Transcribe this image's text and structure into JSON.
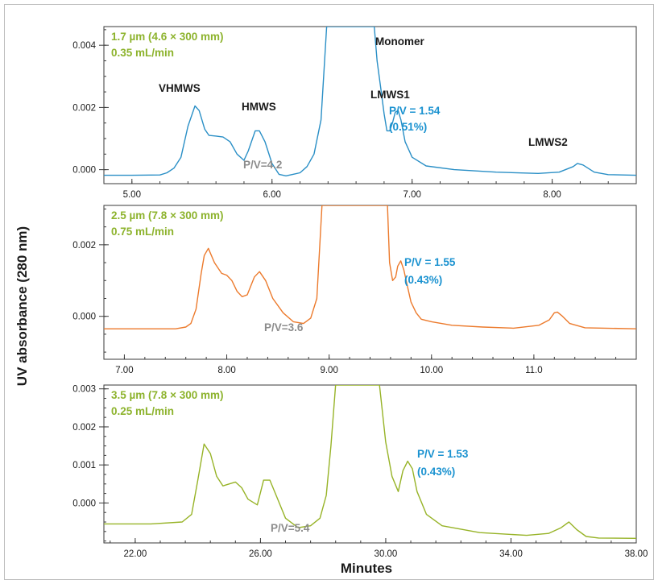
{
  "colors": {
    "panel1": "#2a8fc6",
    "panel2": "#ec7a2c",
    "panel3": "#97b327",
    "condition": "#8db32d",
    "pv_blue": "#1a92d0",
    "pv_gray": "#8c8c8c",
    "annotation": "#1a1a1a"
  },
  "axes": {
    "ylabel": "UV absorbance (280 nm)",
    "xlabel": "Minutes"
  },
  "chart_data": [
    {
      "type": "line",
      "condition": [
        "1.7 µm (4.6 × 300 mm)",
        "0.35 mL/min"
      ],
      "xlim": [
        4.8,
        8.6
      ],
      "ylim": [
        -0.00045,
        0.0046
      ],
      "x_ticks": [
        "5.00",
        "6.00",
        "7.00",
        "8.00"
      ],
      "x_tick_values": [
        5.0,
        6.0,
        7.0,
        8.0
      ],
      "y_ticks": [
        "0.000",
        "0.002",
        "0.004"
      ],
      "y_tick_values": [
        0.0,
        0.002,
        0.004
      ],
      "annotations": {
        "peaks": [
          "VHMWS",
          "HMWS",
          "Monomer",
          "LMWS1",
          "LMWS2"
        ],
        "pv_gray": "P/V=4.2",
        "pv_blue": [
          "P/V = 1.54",
          "(0.51%)"
        ]
      },
      "series": [
        {
          "x": [
            4.8,
            5.0,
            5.2,
            5.25,
            5.3,
            5.35,
            5.4,
            5.45,
            5.48,
            5.52,
            5.55,
            5.6,
            5.65,
            5.7,
            5.75,
            5.8,
            5.83,
            5.88,
            5.91,
            5.95,
            6.0,
            6.05,
            6.1,
            6.15,
            6.2,
            6.25,
            6.3,
            6.35,
            6.39,
            6.73,
            6.75,
            6.78,
            6.8,
            6.82,
            6.84,
            6.86,
            6.88,
            6.9,
            6.92,
            6.95,
            7.0,
            7.1,
            7.3,
            7.6,
            7.9,
            8.05,
            8.15,
            8.18,
            8.22,
            8.3,
            8.4,
            8.6
          ],
          "y": [
            -0.00018,
            -0.00018,
            -0.00017,
            -0.0001,
            5e-05,
            0.0004,
            0.0014,
            0.00205,
            0.0019,
            0.0013,
            0.0011,
            0.00108,
            0.00105,
            0.0009,
            0.0005,
            0.0003,
            0.0006,
            0.00125,
            0.00125,
            0.0009,
            0.0002,
            -0.00015,
            -0.0002,
            -0.00015,
            -0.0001,
            0.0001,
            0.0005,
            0.0016,
            0.0046,
            0.0046,
            0.0035,
            0.0025,
            0.0018,
            0.00125,
            0.00125,
            0.0015,
            0.00185,
            0.0019,
            0.0016,
            0.0009,
            0.0004,
            0.00012,
            0.0,
            -8e-05,
            -0.00012,
            -8e-05,
            0.0001,
            0.0002,
            0.00015,
            -8e-05,
            -0.00016,
            -0.00018
          ]
        }
      ]
    },
    {
      "type": "line",
      "condition": [
        "2.5 µm (7.8 × 300 mm)",
        "0.75 mL/min"
      ],
      "xlim": [
        6.8,
        12.0
      ],
      "ylim": [
        -0.0012,
        0.0031
      ],
      "x_ticks": [
        "7.00",
        "8.00",
        "9.00",
        "10.00",
        "11.0"
      ],
      "x_tick_values": [
        7.0,
        8.0,
        9.0,
        10.0,
        11.0
      ],
      "y_ticks": [
        "0.000",
        "0.002"
      ],
      "y_tick_values": [
        0.0,
        0.002
      ],
      "annotations": {
        "pv_gray": "P/V=3.6",
        "pv_blue": [
          "P/V = 1.55",
          "(0.43%)"
        ]
      },
      "series": [
        {
          "x": [
            6.8,
            7.5,
            7.6,
            7.65,
            7.7,
            7.75,
            7.78,
            7.82,
            7.88,
            7.95,
            8.0,
            8.05,
            8.1,
            8.15,
            8.2,
            8.27,
            8.32,
            8.38,
            8.45,
            8.55,
            8.65,
            8.75,
            8.82,
            8.88,
            8.93,
            9.57,
            9.59,
            9.62,
            9.65,
            9.67,
            9.7,
            9.73,
            9.76,
            9.8,
            9.85,
            9.9,
            10.0,
            10.2,
            10.5,
            10.8,
            11.05,
            11.15,
            11.2,
            11.23,
            11.28,
            11.35,
            11.5,
            12.0
          ],
          "y": [
            -0.00035,
            -0.00035,
            -0.0003,
            -0.0002,
            0.0002,
            0.0012,
            0.0017,
            0.0019,
            0.0015,
            0.0012,
            0.00115,
            0.001,
            0.0007,
            0.00055,
            0.0006,
            0.0011,
            0.00125,
            0.001,
            0.0005,
            0.0001,
            -0.00015,
            -0.0002,
            -5e-05,
            0.0005,
            0.0031,
            0.0031,
            0.0015,
            0.001,
            0.0011,
            0.0014,
            0.00155,
            0.0013,
            0.0009,
            0.0004,
            0.0001,
            -8e-05,
            -0.00015,
            -0.00025,
            -0.0003,
            -0.00033,
            -0.00025,
            -0.0001,
            0.0001,
            0.00012,
            0.0,
            -0.0002,
            -0.00032,
            -0.00035
          ]
        }
      ]
    },
    {
      "type": "line",
      "condition": [
        "3.5 µm (7.8 × 300 mm)",
        "0.25 mL/min"
      ],
      "xlim": [
        21.0,
        38.0
      ],
      "ylim": [
        -0.00105,
        0.0031
      ],
      "x_ticks": [
        "22.00",
        "26.00",
        "30.00",
        "34.00",
        "38.00"
      ],
      "x_tick_values": [
        22.0,
        26.0,
        30.0,
        34.0,
        38.0
      ],
      "y_ticks": [
        "0.000",
        "0.001",
        "0.002",
        "0.003"
      ],
      "y_tick_values": [
        0.0,
        0.001,
        0.002,
        0.003
      ],
      "annotations": {
        "pv_gray": "P/V=5.4",
        "pv_blue": [
          "P/V = 1.53",
          "(0.43%)"
        ]
      },
      "series": [
        {
          "x": [
            21.0,
            22.5,
            23.5,
            23.8,
            24.0,
            24.2,
            24.4,
            24.6,
            24.8,
            25.0,
            25.2,
            25.4,
            25.6,
            25.9,
            26.1,
            26.3,
            26.5,
            26.8,
            27.2,
            27.6,
            27.9,
            28.1,
            28.25,
            28.4,
            29.8,
            30.0,
            30.2,
            30.4,
            30.55,
            30.7,
            30.85,
            31.0,
            31.3,
            31.8,
            33.0,
            34.5,
            35.2,
            35.6,
            35.85,
            36.1,
            36.4,
            36.8,
            38.0
          ],
          "y": [
            -0.00055,
            -0.00055,
            -0.0005,
            -0.0003,
            0.0006,
            0.00155,
            0.0013,
            0.0007,
            0.00045,
            0.0005,
            0.00055,
            0.0004,
            0.0001,
            -5e-05,
            0.0006,
            0.0006,
            0.0002,
            -0.0004,
            -0.00065,
            -0.0006,
            -0.0004,
            0.0002,
            0.0015,
            0.0031,
            0.0031,
            0.0016,
            0.0007,
            0.0003,
            0.00085,
            0.0011,
            0.0009,
            0.0003,
            -0.0003,
            -0.0006,
            -0.00078,
            -0.00085,
            -0.0008,
            -0.00065,
            -0.0005,
            -0.0007,
            -0.00088,
            -0.00092,
            -0.00093
          ]
        }
      ]
    }
  ]
}
